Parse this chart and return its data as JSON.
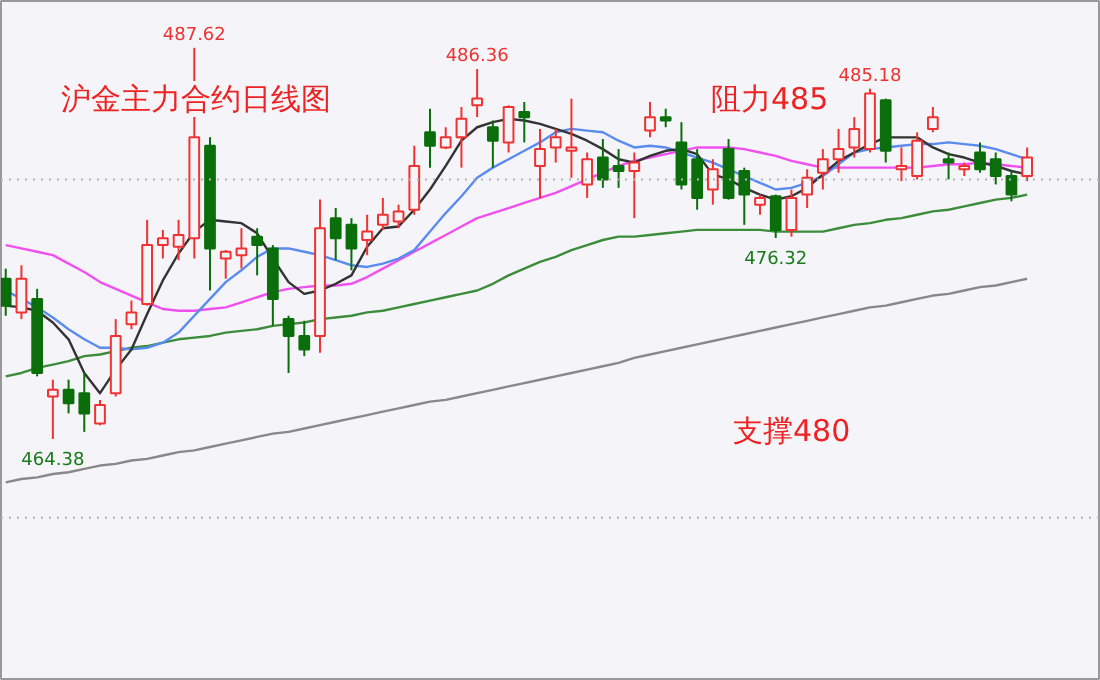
{
  "chart_data": {
    "type": "candlestick",
    "title": "沪金主力合约日线图",
    "categories": [
      null,
      null,
      null,
      null,
      null,
      null,
      null,
      null,
      null,
      null,
      null,
      null,
      null,
      null,
      null,
      null,
      null,
      null,
      null,
      null,
      null,
      null,
      null,
      null,
      null,
      null,
      null,
      null,
      null,
      null,
      null,
      null,
      null,
      null,
      null,
      null,
      null,
      null,
      null,
      null,
      null,
      null,
      null,
      null,
      null,
      null,
      null,
      null,
      null,
      null,
      null,
      null,
      null,
      null,
      null,
      null,
      null,
      null,
      null,
      null,
      null,
      null,
      null,
      null,
      null,
      null
    ],
    "ohlc": [
      [
        473.9,
        474.5,
        471.7,
        472.3
      ],
      [
        471.9,
        474.7,
        471.5,
        473.9
      ],
      [
        472.7,
        473.3,
        468.1,
        468.3
      ],
      [
        466.9,
        467.9,
        464.38,
        467.3
      ],
      [
        467.3,
        467.9,
        465.9,
        466.5
      ],
      [
        467.1,
        468.3,
        464.8,
        465.9
      ],
      [
        465.3,
        466.7,
        465.2,
        466.4
      ],
      [
        467.1,
        471.5,
        466.9,
        470.5
      ],
      [
        471.2,
        472.6,
        470.9,
        471.9
      ],
      [
        472.4,
        477.4,
        472.3,
        475.9
      ],
      [
        475.9,
        476.8,
        475.1,
        476.3
      ],
      [
        475.8,
        477.4,
        475.0,
        476.5
      ],
      [
        476.3,
        487.62,
        475.1,
        482.3
      ],
      [
        481.8,
        482.3,
        473.2,
        475.7
      ],
      [
        475.1,
        475.6,
        473.9,
        475.5
      ],
      [
        475.3,
        476.9,
        474.5,
        475.7
      ],
      [
        476.4,
        476.9,
        474.1,
        475.9
      ],
      [
        475.7,
        475.9,
        471.1,
        472.7
      ],
      [
        471.5,
        471.7,
        468.3,
        470.5
      ],
      [
        470.5,
        471.4,
        469.3,
        469.7
      ],
      [
        470.5,
        478.6,
        469.5,
        476.9
      ],
      [
        477.5,
        478.1,
        475.0,
        476.3
      ],
      [
        477.1,
        477.5,
        474.4,
        475.7
      ],
      [
        476.2,
        477.7,
        475.3,
        476.7
      ],
      [
        477.1,
        478.7,
        476.8,
        477.7
      ],
      [
        477.3,
        478.3,
        476.9,
        477.9
      ],
      [
        478.0,
        481.8,
        477.7,
        480.6
      ],
      [
        482.6,
        484.0,
        480.5,
        481.8
      ],
      [
        481.7,
        482.9,
        481.6,
        482.3
      ],
      [
        482.3,
        484.1,
        480.5,
        483.4
      ],
      [
        484.2,
        486.36,
        483.5,
        484.6
      ],
      [
        482.9,
        483.3,
        480.5,
        482.1
      ],
      [
        482.0,
        484.2,
        481.4,
        484.1
      ],
      [
        483.8,
        484.4,
        482.0,
        483.5
      ],
      [
        480.6,
        482.8,
        478.7,
        481.6
      ],
      [
        481.7,
        482.8,
        480.8,
        482.3
      ],
      [
        481.5,
        484.6,
        479.9,
        481.7
      ],
      [
        479.5,
        481.4,
        478.7,
        481.0
      ],
      [
        481.1,
        482.2,
        479.3,
        479.8
      ],
      [
        480.6,
        481.6,
        479.3,
        480.3
      ],
      [
        480.3,
        481.4,
        477.5,
        480.8
      ],
      [
        482.7,
        484.4,
        482.3,
        483.5
      ],
      [
        483.5,
        484.0,
        482.9,
        483.3
      ],
      [
        482.0,
        483.2,
        479.2,
        479.5
      ],
      [
        481.0,
        481.6,
        478.0,
        478.7
      ],
      [
        479.2,
        481.0,
        478.3,
        480.4
      ],
      [
        481.6,
        482.2,
        478.6,
        478.7
      ],
      [
        480.3,
        480.5,
        477.1,
        478.9
      ],
      [
        478.3,
        478.9,
        477.7,
        478.7
      ],
      [
        478.8,
        478.9,
        476.32,
        476.8
      ],
      [
        476.8,
        479.2,
        476.4,
        478.7
      ],
      [
        478.9,
        480.4,
        478.1,
        479.9
      ],
      [
        480.2,
        481.6,
        479.2,
        481.0
      ],
      [
        481.0,
        482.8,
        480.2,
        481.6
      ],
      [
        481.7,
        483.5,
        481.1,
        482.8
      ],
      [
        481.6,
        485.18,
        481.4,
        484.9
      ],
      [
        484.5,
        484.6,
        480.8,
        481.5
      ],
      [
        480.4,
        481.7,
        479.7,
        480.6
      ],
      [
        480.0,
        482.6,
        479.8,
        482.1
      ],
      [
        482.8,
        484.1,
        482.6,
        483.5
      ],
      [
        481.0,
        481.4,
        479.8,
        480.8
      ],
      [
        480.4,
        480.8,
        480.0,
        480.6
      ],
      [
        481.4,
        482.0,
        480.2,
        480.4
      ],
      [
        481.0,
        481.4,
        479.5,
        480.0
      ],
      [
        480.0,
        480.3,
        478.5,
        478.9
      ],
      [
        480.0,
        481.7,
        479.7,
        481.1
      ]
    ],
    "colors": [
      "#0a6e0a",
      "#f03232",
      "#0a6e0a",
      "#f03232",
      "#0a6e0a",
      "#0a6e0a",
      "#f03232",
      "#f03232",
      "#f03232",
      "#f03232",
      "#f03232",
      "#f03232",
      "#f03232",
      "#0a6e0a",
      "#f03232",
      "#f03232",
      "#0a6e0a",
      "#0a6e0a",
      "#0a6e0a",
      "#0a6e0a",
      "#f03232",
      "#0a6e0a",
      "#0a6e0a",
      "#f03232",
      "#f03232",
      "#f03232",
      "#f03232",
      "#0a6e0a",
      "#f03232",
      "#f03232",
      "#f03232",
      "#0a6e0a",
      "#f03232",
      "#0a6e0a",
      "#f03232",
      "#f03232",
      "#f03232",
      "#f03232",
      "#0a6e0a",
      "#0a6e0a",
      "#f03232",
      "#f03232",
      "#0a6e0a",
      "#0a6e0a",
      "#0a6e0a",
      "#f03232",
      "#0a6e0a",
      "#0a6e0a",
      "#f03232",
      "#0a6e0a",
      "#f03232",
      "#f03232",
      "#f03232",
      "#f03232",
      "#f03232",
      "#f03232",
      "#0a6e0a",
      "#f03232",
      "#f03232",
      "#f03232",
      "#0a6e0a",
      "#f03232",
      "#0a6e0a",
      "#0a6e0a",
      "#0a6e0a",
      "#f03232"
    ],
    "series": [
      {
        "type": "line",
        "color": "#888888",
        "values": [
          461.8,
          462.0,
          462.1,
          462.3,
          462.4,
          462.6,
          462.8,
          462.9,
          463.1,
          463.2,
          463.4,
          463.6,
          463.7,
          463.9,
          464.1,
          464.3,
          464.5,
          464.7,
          464.8,
          465.0,
          465.2,
          465.4,
          465.6,
          465.8,
          466.0,
          466.2,
          466.4,
          466.6,
          466.7,
          466.9,
          467.1,
          467.3,
          467.5,
          467.7,
          467.9,
          468.1,
          468.3,
          468.5,
          468.7,
          468.9,
          469.2,
          469.4,
          469.6,
          469.8,
          470.0,
          470.2,
          470.4,
          470.6,
          470.8,
          471.0,
          471.2,
          471.4,
          471.6,
          471.8,
          472.0,
          472.2,
          472.3,
          472.5,
          472.7,
          472.9,
          473.0,
          473.2,
          473.4,
          473.5,
          473.7,
          473.9
        ]
      },
      {
        "type": "line",
        "color": "#3c8c3c",
        "values": [
          468.1,
          468.3,
          468.6,
          468.8,
          469.0,
          469.3,
          469.4,
          469.6,
          469.8,
          469.9,
          470.1,
          470.3,
          470.4,
          470.5,
          470.7,
          470.8,
          470.9,
          471.1,
          471.2,
          471.3,
          471.5,
          471.6,
          471.7,
          471.9,
          472.0,
          472.2,
          472.4,
          472.6,
          472.8,
          473.0,
          473.2,
          473.6,
          474.1,
          474.5,
          474.9,
          475.2,
          475.6,
          475.9,
          476.2,
          476.4,
          476.4,
          476.5,
          476.6,
          476.7,
          476.8,
          476.8,
          476.8,
          476.8,
          476.8,
          476.7,
          476.7,
          476.7,
          476.7,
          476.9,
          477.1,
          477.2,
          477.4,
          477.5,
          477.7,
          477.9,
          478.0,
          478.2,
          478.4,
          478.6,
          478.7,
          478.9
        ]
      },
      {
        "type": "line",
        "color": "#f050f0",
        "values": [
          475.9,
          475.7,
          475.5,
          475.3,
          474.8,
          474.3,
          473.7,
          473.3,
          472.9,
          472.5,
          472.1,
          472.0,
          472.0,
          472.1,
          472.2,
          472.5,
          472.8,
          473.1,
          473.3,
          473.4,
          473.5,
          473.5,
          473.6,
          474.0,
          474.5,
          475.0,
          475.5,
          476.0,
          476.5,
          477.0,
          477.5,
          477.8,
          478.1,
          478.4,
          478.7,
          479.0,
          479.4,
          479.8,
          480.2,
          480.6,
          480.9,
          481.1,
          481.3,
          481.5,
          481.7,
          481.7,
          481.7,
          481.6,
          481.4,
          481.2,
          480.9,
          480.7,
          480.5,
          480.5,
          480.5,
          480.5,
          480.5,
          480.5,
          480.5,
          480.6,
          480.7,
          480.7,
          480.8,
          480.7,
          480.6,
          480.5
        ]
      },
      {
        "type": "line",
        "color": "#5a8cf0",
        "values": [
          473.2,
          472.7,
          472.2,
          471.6,
          470.9,
          470.3,
          469.8,
          469.8,
          469.7,
          469.8,
          470.1,
          470.7,
          471.7,
          472.7,
          473.7,
          474.4,
          475.2,
          475.7,
          475.7,
          475.5,
          475.3,
          475.0,
          474.7,
          474.6,
          474.8,
          475.1,
          475.6,
          476.7,
          477.8,
          478.8,
          479.9,
          480.5,
          481.0,
          481.5,
          482.0,
          482.6,
          482.8,
          482.7,
          482.6,
          482.1,
          481.7,
          481.8,
          481.7,
          481.4,
          481.1,
          480.8,
          480.4,
          480.0,
          479.6,
          479.2,
          479.3,
          479.6,
          480.0,
          480.7,
          481.4,
          481.6,
          481.7,
          481.8,
          481.9,
          481.9,
          482.0,
          481.9,
          481.8,
          481.6,
          481.3,
          481.0
        ]
      },
      {
        "type": "line",
        "color": "#333333",
        "values": [
          472.3,
          472.2,
          472.0,
          471.3,
          470.3,
          468.3,
          467.1,
          468.5,
          469.7,
          471.8,
          473.8,
          475.4,
          476.7,
          477.4,
          477.3,
          477.2,
          476.6,
          475.1,
          473.7,
          473.0,
          473.2,
          473.6,
          474.1,
          475.8,
          476.9,
          477.0,
          478.0,
          479.2,
          480.6,
          482.1,
          482.9,
          483.2,
          483.4,
          483.3,
          483.1,
          482.8,
          482.5,
          482.1,
          481.6,
          481.0,
          480.8,
          481.2,
          481.5,
          481.6,
          481.3,
          480.1,
          479.8,
          479.3,
          478.9,
          478.6,
          478.8,
          479.3,
          480.1,
          480.9,
          481.4,
          481.9,
          482.3,
          482.3,
          482.3,
          481.7,
          481.3,
          481.1,
          480.8,
          480.6,
          480.3,
          480.1
        ]
      }
    ],
    "ylim": [
      450.0,
      490.4
    ],
    "ref_lines": [
      {
        "axis": "y",
        "value": 479.8,
        "color": "#b4b4b4",
        "line_style": "dotted"
      },
      {
        "axis": "y",
        "value": 459.7,
        "color": "#b4b4b4",
        "line_style": "dotted"
      }
    ],
    "annotations": [
      "阻力485",
      "支撑480",
      {
        "text": "487.62",
        "y": 487.62
      },
      {
        "text": "486.36",
        "y": 486.36
      },
      {
        "text": "485.18",
        "y": 485.18
      },
      {
        "text": "476.32",
        "y": 476.32
      },
      {
        "text": "464.38",
        "y": 464.38
      }
    ],
    "grid": false
  }
}
